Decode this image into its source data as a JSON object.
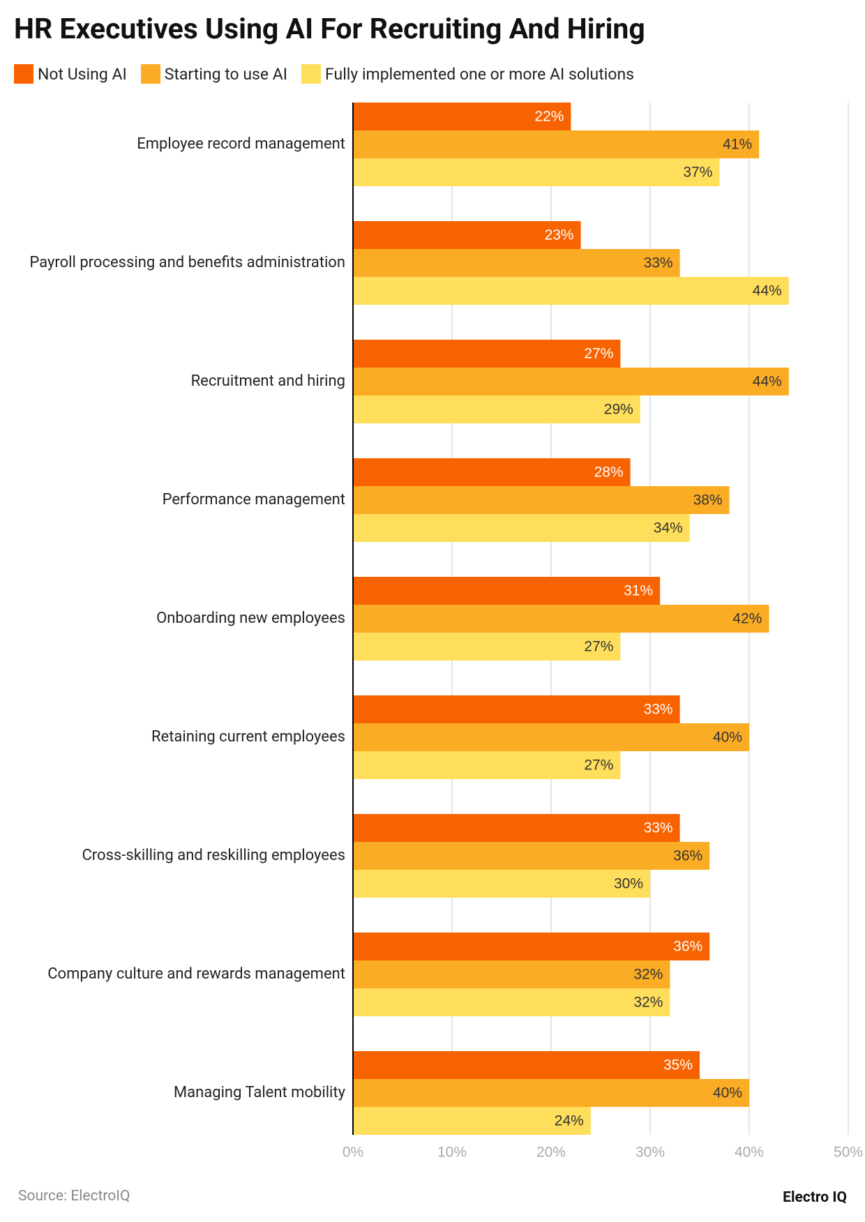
{
  "chart_data": {
    "type": "bar",
    "orientation": "horizontal",
    "title": "HR Executives Using AI For Recruiting And Hiring",
    "categories": [
      "Employee record management",
      "Payroll processing and benefits administration",
      "Recruitment and hiring",
      "Performance management",
      "Onboarding new employees",
      "Retaining current employees",
      "Cross-skilling and reskilling employees",
      "Company culture and rewards management",
      "Managing Talent mobility"
    ],
    "series": [
      {
        "name": "Not Using AI",
        "color": "#f76300",
        "values": [
          22,
          23,
          27,
          28,
          31,
          33,
          33,
          36,
          35
        ],
        "value_labels": [
          "22%",
          "23%",
          "27%",
          "28%",
          "31%",
          "33%",
          "33%",
          "36%",
          "35%"
        ]
      },
      {
        "name": "Starting to use AI",
        "color": "#fbac25",
        "values": [
          41,
          33,
          44,
          38,
          42,
          40,
          36,
          32,
          40
        ],
        "value_labels": [
          "41%",
          "33%",
          "44%",
          "38%",
          "42%",
          "40%",
          "36%",
          "32%",
          "40%"
        ]
      },
      {
        "name": "Fully implemented one or more AI solutions",
        "color": "#fede5b",
        "values": [
          37,
          44,
          29,
          34,
          27,
          27,
          30,
          32,
          24
        ],
        "value_labels": [
          "37%",
          "44%",
          "29%",
          "34%",
          "27%",
          "27%",
          "30%",
          "32%",
          "24%"
        ]
      }
    ],
    "xlim": [
      0,
      50
    ],
    "xticks": [
      {
        "value": 0,
        "label": "0%"
      },
      {
        "value": 10,
        "label": "10%"
      },
      {
        "value": 20,
        "label": "20%"
      },
      {
        "value": 30,
        "label": "30%"
      },
      {
        "value": 40,
        "label": "40%"
      },
      {
        "value": 50,
        "label": "50%"
      }
    ],
    "grid": true,
    "source": "Source: ElectroIQ",
    "brand": "Electro IQ"
  }
}
